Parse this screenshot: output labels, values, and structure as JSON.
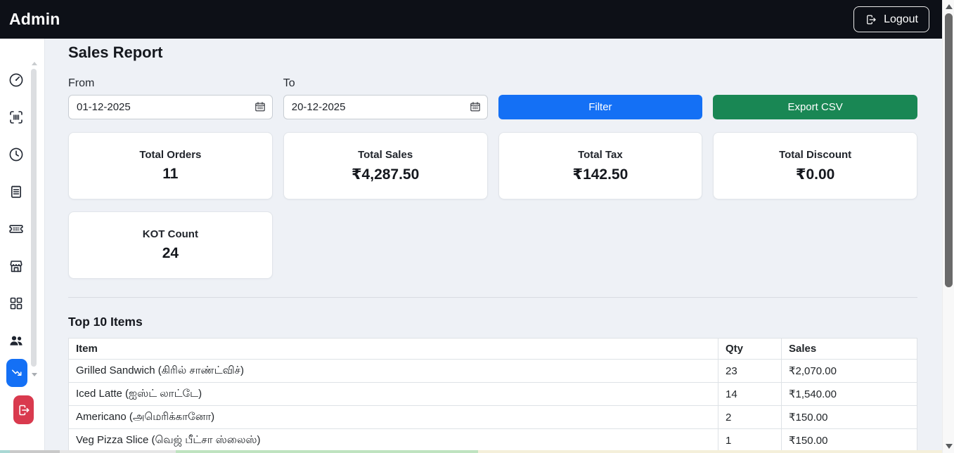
{
  "header": {
    "title": "Admin",
    "logout_label": "Logout"
  },
  "sidebar": {
    "items": [
      {
        "id": "dashboard",
        "icon": "gauge-icon"
      },
      {
        "id": "barcode",
        "icon": "barcode-scan-icon"
      },
      {
        "id": "history",
        "icon": "clock-icon"
      },
      {
        "id": "orders",
        "icon": "receipt-icon"
      },
      {
        "id": "tickets",
        "icon": "ticket-icon"
      },
      {
        "id": "store",
        "icon": "store-icon"
      },
      {
        "id": "menu",
        "icon": "grid-icon"
      },
      {
        "id": "customers",
        "icon": "users-icon"
      }
    ],
    "active_item": {
      "id": "sales-report",
      "icon": "trend-arrow-icon"
    },
    "logout_item": {
      "id": "logout",
      "icon": "exit-icon"
    }
  },
  "page": {
    "title": "Sales Report"
  },
  "filters": {
    "from_label": "From",
    "from_value": "01-12-2025",
    "to_label": "To",
    "to_value": "20-12-2025",
    "filter_label": "Filter",
    "export_label": "Export CSV"
  },
  "stats": [
    {
      "label": "Total Orders",
      "value": "11"
    },
    {
      "label": "Total Sales",
      "value": "₹4,287.50"
    },
    {
      "label": "Total Tax",
      "value": "₹142.50"
    },
    {
      "label": "Total Discount",
      "value": "₹0.00"
    },
    {
      "label": "KOT Count",
      "value": "24"
    }
  ],
  "top_items": {
    "title": "Top 10 Items",
    "columns": [
      "Item",
      "Qty",
      "Sales"
    ],
    "rows": [
      [
        "Grilled Sandwich (கிரில் சாண்ட்விச்)",
        "23",
        "₹2,070.00"
      ],
      [
        "Iced Latte (ஐஸ்ட் லாட்டே)",
        "14",
        "₹1,540.00"
      ],
      [
        "Americano (அமெரிக்கானோ)",
        "2",
        "₹150.00"
      ],
      [
        "Veg Pizza Slice (வெஜ் பீட்சா ஸ்லைஸ்)",
        "1",
        "₹150.00"
      ]
    ]
  },
  "colors": {
    "topbar_bg": "#0d1017",
    "primary_blue": "#1470f5",
    "success_green": "#198754",
    "danger_red": "#d93a4e",
    "main_bg": "#eef1f6"
  }
}
